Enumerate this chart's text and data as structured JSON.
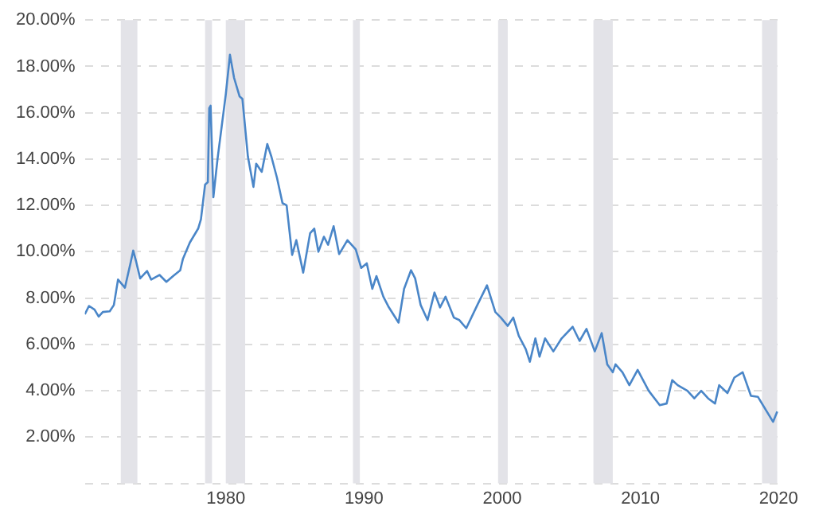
{
  "chart_data": {
    "type": "line",
    "xlim": [
      1969.8,
      2020.1
    ],
    "xticks": [
      1980,
      1990,
      2000,
      2010,
      2020
    ],
    "ylim": [
      0,
      20
    ],
    "yticks": [
      {
        "value": 0,
        "label": null
      },
      {
        "value": 2,
        "label": "2.00%"
      },
      {
        "value": 4,
        "label": "4.00%"
      },
      {
        "value": 6,
        "label": "6.00%"
      },
      {
        "value": 8,
        "label": "8.00%"
      },
      {
        "value": 10,
        "label": "10.00%"
      },
      {
        "value": 12,
        "label": "12.00%"
      },
      {
        "value": 14,
        "label": "14.00%"
      },
      {
        "value": 16,
        "label": "16.00%"
      },
      {
        "value": 18,
        "label": "18.00%"
      },
      {
        "value": 20,
        "label": "20.00%"
      }
    ],
    "grid": "y",
    "line_style": "solid",
    "marker": "none",
    "bands": [
      {
        "axis": "x",
        "from": 1972.4,
        "to": 1973.6,
        "color": "#e3e3e8"
      },
      {
        "axis": "x",
        "from": 1978.5,
        "to": 1979.0,
        "color": "#e3e3e8"
      },
      {
        "axis": "x",
        "from": 1980.0,
        "to": 1981.4,
        "color": "#e3e3e8"
      },
      {
        "axis": "x",
        "from": 1989.2,
        "to": 1989.7,
        "color": "#e3e3e8"
      },
      {
        "axis": "x",
        "from": 1999.7,
        "to": 2000.4,
        "color": "#e3e3e8"
      },
      {
        "axis": "x",
        "from": 2006.6,
        "to": 2008.0,
        "color": "#e3e3e8"
      },
      {
        "axis": "x",
        "from": 2018.8,
        "to": 2019.9,
        "color": "#e3e3e8"
      }
    ],
    "series": [
      {
        "color": "#4a86c8",
        "x": [
          1969.8,
          1970.1,
          1970.5,
          1970.8,
          1971.1,
          1971.6,
          1971.9,
          1972.2,
          1972.7,
          1973.1,
          1973.3,
          1973.5,
          1973.8,
          1974.3,
          1974.6,
          1975.2,
          1975.7,
          1976.2,
          1976.7,
          1976.9,
          1977.4,
          1978.0,
          1978.2,
          1978.5,
          1978.7,
          1978.8,
          1978.9,
          1979.1,
          1979.4,
          1979.7,
          1980.0,
          1980.3,
          1980.6,
          1981.0,
          1981.2,
          1981.6,
          1982.0,
          1982.2,
          1982.6,
          1983.0,
          1983.3,
          1983.7,
          1984.1,
          1984.4,
          1984.8,
          1985.1,
          1985.6,
          1986.1,
          1986.4,
          1986.7,
          1987.1,
          1987.4,
          1987.8,
          1988.2,
          1988.8,
          1989.4,
          1989.8,
          1990.2,
          1990.6,
          1990.9,
          1991.4,
          1991.8,
          1992.5,
          1992.9,
          1993.4,
          1993.7,
          1994.1,
          1994.6,
          1995.1,
          1995.5,
          1995.9,
          1996.5,
          1996.9,
          1997.4,
          1998.2,
          1998.9,
          1999.5,
          1999.9,
          2000.4,
          2000.8,
          2001.2,
          2001.7,
          2002.0,
          2002.4,
          2002.7,
          2003.1,
          2003.7,
          2004.3,
          2005.1,
          2005.6,
          2006.1,
          2006.7,
          2007.2,
          2007.6,
          2008.0,
          2008.2,
          2008.7,
          2009.2,
          2009.8,
          2010.6,
          2011.4,
          2011.9,
          2012.3,
          2012.7,
          2013.4,
          2013.9,
          2014.4,
          2014.9,
          2015.4,
          2015.7,
          2016.3,
          2016.8,
          2017.4,
          2018.0,
          2018.5,
          2019.1,
          2019.6,
          2019.9
        ],
        "values": [
          7.3,
          7.66,
          7.5,
          7.2,
          7.4,
          7.43,
          7.7,
          8.8,
          8.45,
          9.5,
          10.05,
          9.6,
          8.85,
          9.17,
          8.8,
          9.0,
          8.7,
          8.96,
          9.2,
          9.7,
          10.4,
          11.0,
          11.4,
          12.9,
          13.0,
          16.2,
          16.3,
          12.35,
          14.0,
          15.4,
          16.8,
          18.5,
          17.5,
          16.7,
          16.6,
          14.1,
          12.8,
          13.8,
          13.45,
          14.65,
          14.1,
          13.2,
          12.1,
          12.0,
          9.86,
          10.5,
          9.1,
          10.8,
          11.0,
          10.0,
          10.65,
          10.3,
          11.1,
          9.9,
          10.5,
          10.1,
          9.3,
          9.5,
          8.4,
          8.95,
          8.06,
          7.6,
          6.94,
          8.4,
          9.2,
          8.85,
          7.7,
          7.05,
          8.24,
          7.6,
          8.06,
          7.16,
          7.05,
          6.7,
          7.7,
          8.55,
          7.4,
          7.16,
          6.8,
          7.16,
          6.37,
          5.8,
          5.25,
          6.26,
          5.47,
          6.26,
          5.7,
          6.26,
          6.76,
          6.15,
          6.67,
          5.7,
          6.49,
          5.14,
          4.8,
          5.14,
          4.8,
          4.24,
          4.9,
          4.0,
          3.38,
          3.45,
          4.46,
          4.24,
          4.0,
          3.67,
          4.0,
          3.67,
          3.45,
          4.24,
          3.9,
          4.57,
          4.8,
          3.78,
          3.74,
          3.15,
          2.66,
          3.1
        ]
      }
    ]
  }
}
